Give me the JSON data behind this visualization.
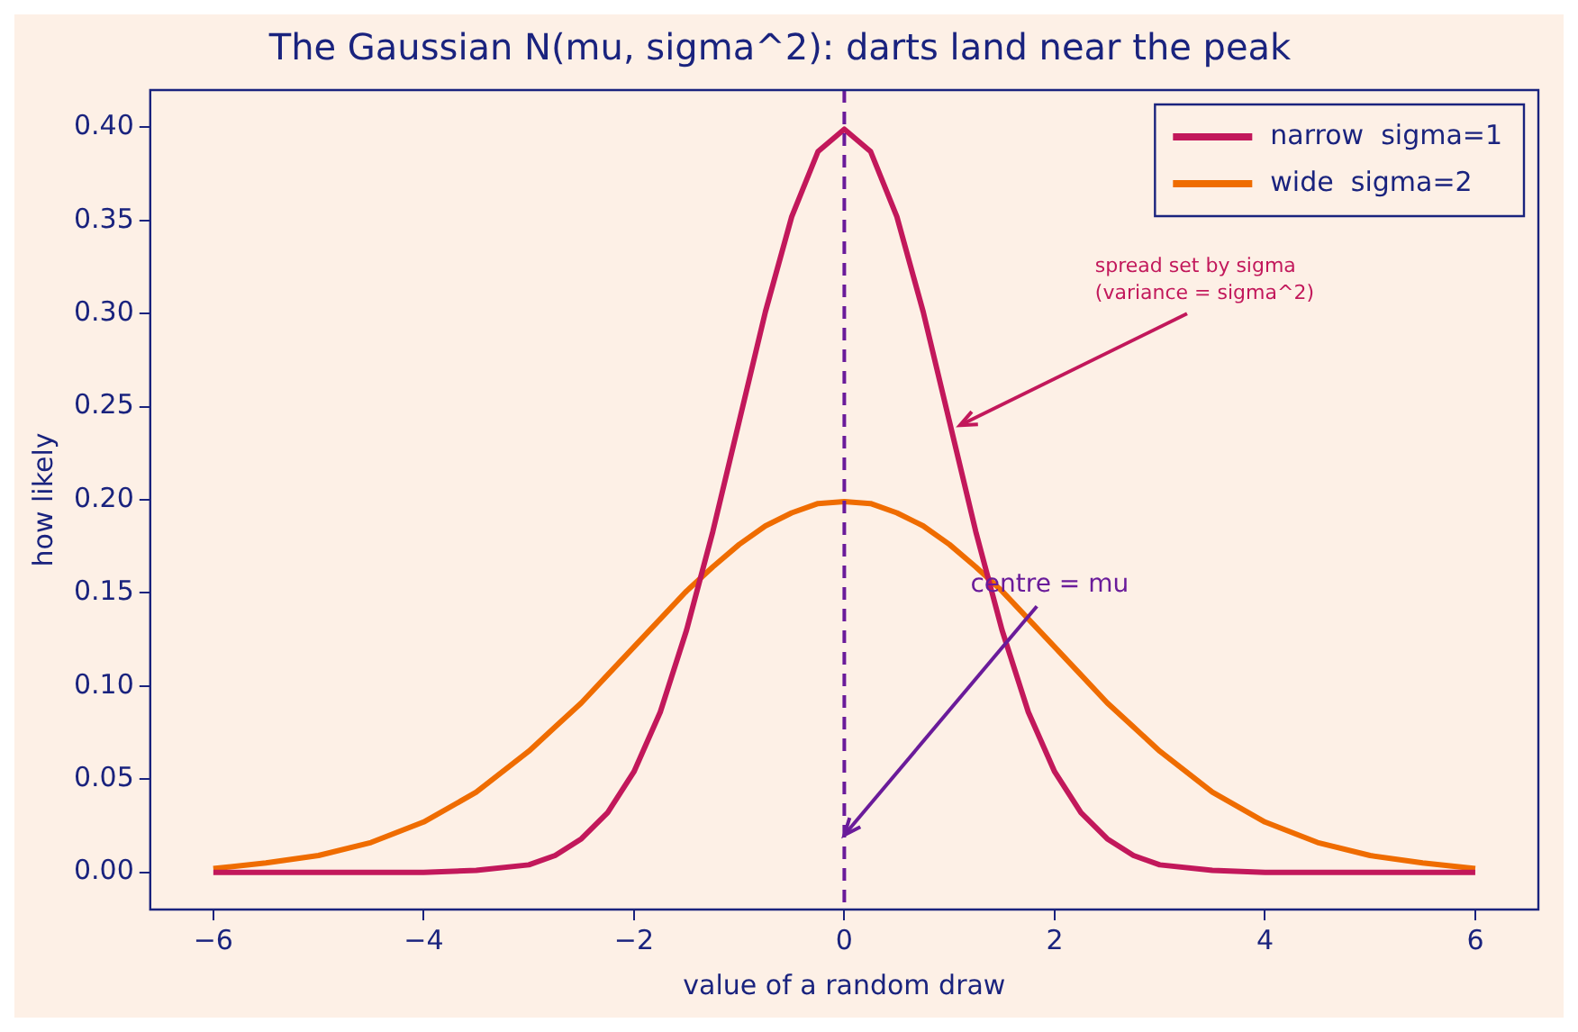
{
  "chart_data": {
    "type": "line",
    "title": "The Gaussian N(mu, sigma^2): darts land near the peak",
    "xlabel": "value of a random draw",
    "ylabel": "how likely",
    "x": [
      -6,
      -5.5,
      -5,
      -4.5,
      -4,
      -3.5,
      -3,
      -2.75,
      -2.5,
      -2.25,
      -2,
      -1.75,
      -1.5,
      -1.25,
      -1,
      -0.75,
      -0.5,
      -0.25,
      0,
      0.25,
      0.5,
      0.75,
      1,
      1.25,
      1.5,
      1.75,
      2,
      2.25,
      2.5,
      2.75,
      3,
      3.5,
      4,
      4.5,
      5,
      5.5,
      6
    ],
    "series": [
      {
        "name": "narrow  sigma=1",
        "color": "#c2185b",
        "values": [
          0,
          0,
          0,
          0,
          0,
          0.001,
          0.004,
          0.009,
          0.018,
          0.032,
          0.054,
          0.086,
          0.13,
          0.183,
          0.242,
          0.301,
          0.352,
          0.387,
          0.399,
          0.387,
          0.352,
          0.301,
          0.242,
          0.183,
          0.13,
          0.086,
          0.054,
          0.032,
          0.018,
          0.009,
          0.004,
          0.001,
          0,
          0,
          0,
          0,
          0
        ]
      },
      {
        "name": "wide  sigma=2",
        "color": "#ef6c00",
        "values": [
          0.002,
          0.005,
          0.009,
          0.016,
          0.027,
          0.043,
          0.065,
          0.078,
          0.091,
          0.106,
          0.121,
          0.136,
          0.151,
          0.164,
          0.176,
          0.186,
          0.193,
          0.198,
          0.199,
          0.198,
          0.193,
          0.186,
          0.176,
          0.164,
          0.151,
          0.136,
          0.121,
          0.106,
          0.091,
          0.078,
          0.065,
          0.043,
          0.027,
          0.016,
          0.009,
          0.005,
          0.002
        ]
      }
    ],
    "xlim": [
      -6.6,
      6.6
    ],
    "xticks": [
      -6,
      -4,
      -2,
      0,
      2,
      4,
      6
    ],
    "ylim": [
      -0.02,
      0.42
    ],
    "yticks": [
      {
        "value": 0,
        "label": "0.00"
      },
      {
        "value": 0.05,
        "label": "0.05"
      },
      {
        "value": 0.1,
        "label": "0.10"
      },
      {
        "value": 0.15,
        "label": "0.15"
      },
      {
        "value": 0.2,
        "label": "0.20"
      },
      {
        "value": 0.25,
        "label": "0.25"
      },
      {
        "value": 0.3,
        "label": "0.30"
      },
      {
        "value": 0.35,
        "label": "0.35"
      },
      {
        "value": 0.4,
        "label": "0.40"
      }
    ],
    "ref_lines": [
      {
        "axis": "x",
        "value": 0,
        "color": "#6a1b9a",
        "line_style": "dashed"
      }
    ],
    "annotations": [
      {
        "text": "spread set by sigma\n(variance = sigma^2)",
        "x": 1.1,
        "y": 0.24
      },
      {
        "text": "centre = mu",
        "x": 0,
        "y": 0.02
      }
    ],
    "grid": false,
    "legend": "top right",
    "marker": "none",
    "line_style": "solid"
  }
}
